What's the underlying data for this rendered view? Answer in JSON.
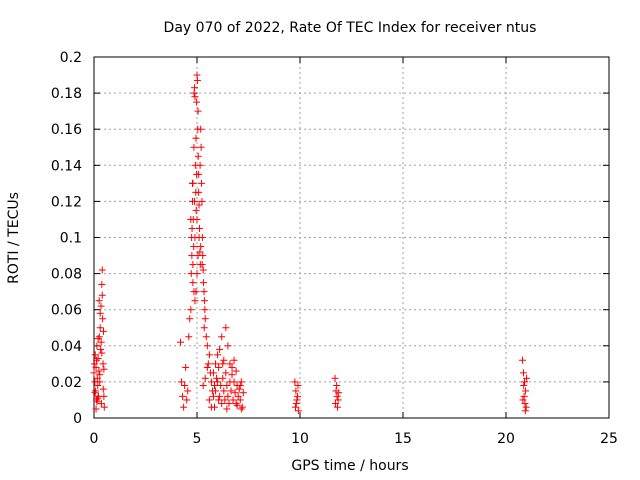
{
  "chart_data": {
    "type": "scatter",
    "title": "Day 070 of 2022, Rate Of TEC Index for receiver ntus",
    "xlabel": "GPS time / hours",
    "ylabel": "ROTI / TECUs",
    "xlim": [
      0,
      25
    ],
    "ylim": [
      0,
      0.2
    ],
    "x_ticks": [
      0,
      5,
      10,
      15,
      20,
      25
    ],
    "x_tick_labels": [
      "0",
      "5",
      "10",
      "15",
      "20",
      "25"
    ],
    "y_ticks": [
      0,
      0.02,
      0.04,
      0.06,
      0.08,
      0.1,
      0.12,
      0.14,
      0.16,
      0.18,
      0.2
    ],
    "y_tick_labels": [
      "0",
      "0.02",
      "0.04",
      "0.06",
      "0.08",
      "0.1",
      "0.12",
      "0.14",
      "0.16",
      "0.18",
      "0.2"
    ],
    "grid": true,
    "marker": "plus",
    "color": "#ff0000",
    "series": [
      {
        "points": [
          [
            0.0,
            0.025
          ],
          [
            0.02,
            0.03
          ],
          [
            0.04,
            0.02
          ],
          [
            0.06,
            0.035
          ],
          [
            0.08,
            0.015
          ],
          [
            0.1,
            0.028
          ],
          [
            0.12,
            0.01
          ],
          [
            0.14,
            0.04
          ],
          [
            0.16,
            0.022
          ],
          [
            0.18,
            0.018
          ],
          [
            0.2,
            0.033
          ],
          [
            0.22,
            0.012
          ],
          [
            0.24,
            0.026
          ],
          [
            0.26,
            0.045
          ],
          [
            0.28,
            0.02
          ],
          [
            0.3,
            0.05
          ],
          [
            0.32,
            0.038
          ],
          [
            0.34,
            0.062
          ],
          [
            0.36,
            0.008
          ],
          [
            0.38,
            0.074
          ],
          [
            0.4,
            0.082
          ],
          [
            0.42,
            0.055
          ],
          [
            0.44,
            0.03
          ],
          [
            0.46,
            0.048
          ],
          [
            0.48,
            0.012
          ],
          [
            0.5,
            0.006
          ],
          [
            0.05,
            0.014
          ],
          [
            0.15,
            0.009
          ],
          [
            0.25,
            0.065
          ],
          [
            0.35,
            0.042
          ],
          [
            0.45,
            0.016
          ],
          [
            0.1,
            0.005
          ],
          [
            0.3,
            0.058
          ],
          [
            0.4,
            0.068
          ],
          [
            0.2,
            0.044
          ],
          [
            0.12,
            0.032
          ],
          [
            0.28,
            0.024
          ],
          [
            0.38,
            0.036
          ],
          [
            0.48,
            0.027
          ],
          [
            0.18,
            0.011
          ],
          [
            4.2,
            0.042
          ],
          [
            4.25,
            0.02
          ],
          [
            4.3,
            0.012
          ],
          [
            4.35,
            0.006
          ],
          [
            4.4,
            0.018
          ],
          [
            4.45,
            0.028
          ],
          [
            4.5,
            0.01
          ],
          [
            4.55,
            0.015
          ],
          [
            4.6,
            0.045
          ],
          [
            4.65,
            0.055
          ],
          [
            4.7,
            0.06
          ],
          [
            4.72,
            0.08
          ],
          [
            4.74,
            0.1
          ],
          [
            4.76,
            0.105
          ],
          [
            4.78,
            0.12
          ],
          [
            4.8,
            0.13
          ],
          [
            4.82,
            0.11
          ],
          [
            4.84,
            0.095
          ],
          [
            4.86,
            0.18
          ],
          [
            4.88,
            0.183
          ],
          [
            4.9,
            0.178
          ],
          [
            4.92,
            0.14
          ],
          [
            4.94,
            0.125
          ],
          [
            4.96,
            0.115
          ],
          [
            4.98,
            0.175
          ],
          [
            5.0,
            0.19
          ],
          [
            5.02,
            0.187
          ],
          [
            5.04,
            0.16
          ],
          [
            5.06,
            0.145
          ],
          [
            5.08,
            0.135
          ],
          [
            5.1,
            0.118
          ],
          [
            5.12,
            0.105
          ],
          [
            5.14,
            0.092
          ],
          [
            5.16,
            0.085
          ],
          [
            5.18,
            0.16
          ],
          [
            5.2,
            0.15
          ],
          [
            5.22,
            0.13
          ],
          [
            5.24,
            0.12
          ],
          [
            5.26,
            0.1
          ],
          [
            5.28,
            0.09
          ],
          [
            5.3,
            0.082
          ],
          [
            5.32,
            0.075
          ],
          [
            5.34,
            0.07
          ],
          [
            5.36,
            0.065
          ],
          [
            5.38,
            0.06
          ],
          [
            5.4,
            0.055
          ],
          [
            4.8,
            0.075
          ],
          [
            4.85,
            0.07
          ],
          [
            4.9,
            0.065
          ],
          [
            4.95,
            0.07
          ],
          [
            5.0,
            0.08
          ],
          [
            5.05,
            0.09
          ],
          [
            4.75,
            0.09
          ],
          [
            4.8,
            0.085
          ],
          [
            4.9,
            0.1
          ],
          [
            5.0,
            0.11
          ],
          [
            5.1,
            0.1
          ],
          [
            4.95,
            0.155
          ],
          [
            5.05,
            0.17
          ],
          [
            5.15,
            0.14
          ],
          [
            4.85,
            0.15
          ],
          [
            4.7,
            0.11
          ],
          [
            4.78,
            0.13
          ],
          [
            4.88,
            0.12
          ],
          [
            4.98,
            0.135
          ],
          [
            5.08,
            0.125
          ],
          [
            5.18,
            0.095
          ],
          [
            5.25,
            0.085
          ],
          [
            5.35,
            0.05
          ],
          [
            5.45,
            0.045
          ],
          [
            5.5,
            0.04
          ],
          [
            5.55,
            0.03
          ],
          [
            5.6,
            0.035
          ],
          [
            5.65,
            0.025
          ],
          [
            5.7,
            0.02
          ],
          [
            5.75,
            0.015
          ],
          [
            5.8,
            0.012
          ],
          [
            5.85,
            0.018
          ],
          [
            5.9,
            0.03
          ],
          [
            5.95,
            0.022
          ],
          [
            5.6,
            0.01
          ],
          [
            5.7,
            0.006
          ],
          [
            5.8,
            0.025
          ],
          [
            5.9,
            0.015
          ],
          [
            6.0,
            0.02
          ],
          [
            6.05,
            0.028
          ],
          [
            6.1,
            0.012
          ],
          [
            6.15,
            0.018
          ],
          [
            6.2,
            0.008
          ],
          [
            6.25,
            0.022
          ],
          [
            6.3,
            0.015
          ],
          [
            6.35,
            0.01
          ],
          [
            6.4,
            0.025
          ],
          [
            6.45,
            0.018
          ],
          [
            6.5,
            0.012
          ],
          [
            6.55,
            0.008
          ],
          [
            6.6,
            0.02
          ],
          [
            6.65,
            0.015
          ],
          [
            6.7,
            0.028
          ],
          [
            6.75,
            0.01
          ],
          [
            6.8,
            0.02
          ],
          [
            6.85,
            0.014
          ],
          [
            6.9,
            0.008
          ],
          [
            6.95,
            0.018
          ],
          [
            7.0,
            0.012
          ],
          [
            7.05,
            0.016
          ],
          [
            7.1,
            0.01
          ],
          [
            7.15,
            0.02
          ],
          [
            7.2,
            0.006
          ],
          [
            7.25,
            0.014
          ],
          [
            6.0,
            0.035
          ],
          [
            6.2,
            0.045
          ],
          [
            6.4,
            0.05
          ],
          [
            6.5,
            0.04
          ],
          [
            6.3,
            0.032
          ],
          [
            6.1,
            0.038
          ],
          [
            5.5,
            0.028
          ],
          [
            5.4,
            0.022
          ],
          [
            5.3,
            0.018
          ],
          [
            6.6,
            0.03
          ],
          [
            6.7,
            0.024
          ],
          [
            6.9,
            0.026
          ],
          [
            7.1,
            0.018
          ],
          [
            6.8,
            0.032
          ],
          [
            5.85,
            0.006
          ],
          [
            6.05,
            0.01
          ],
          [
            6.45,
            0.005
          ],
          [
            6.95,
            0.007
          ],
          [
            7.15,
            0.005
          ],
          [
            6.25,
            0.03
          ],
          [
            9.75,
            0.02
          ],
          [
            9.8,
            0.015
          ],
          [
            9.85,
            0.01
          ],
          [
            9.9,
            0.018
          ],
          [
            9.78,
            0.006
          ],
          [
            9.88,
            0.012
          ],
          [
            9.82,
            0.008
          ],
          [
            9.92,
            0.004
          ],
          [
            11.7,
            0.022
          ],
          [
            11.75,
            0.015
          ],
          [
            11.8,
            0.012
          ],
          [
            11.85,
            0.01
          ],
          [
            11.72,
            0.008
          ],
          [
            11.78,
            0.018
          ],
          [
            11.82,
            0.006
          ],
          [
            11.88,
            0.014
          ],
          [
            20.8,
            0.032
          ],
          [
            20.85,
            0.025
          ],
          [
            20.9,
            0.02
          ],
          [
            20.95,
            0.015
          ],
          [
            20.82,
            0.01
          ],
          [
            20.88,
            0.012
          ],
          [
            20.92,
            0.008
          ],
          [
            20.98,
            0.006
          ],
          [
            20.86,
            0.018
          ],
          [
            20.94,
            0.004
          ],
          [
            21.0,
            0.022
          ]
        ]
      }
    ]
  }
}
